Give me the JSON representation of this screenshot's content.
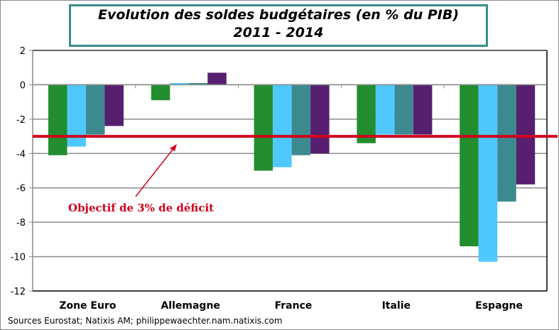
{
  "chart_data": {
    "type": "bar",
    "title": "Evolution des soldes budgétaires (en % du PIB)",
    "subtitle": "2011 - 2014",
    "categories": [
      "Zone Euro",
      "Allemagne",
      "France",
      "Italie",
      "Espagne"
    ],
    "series": [
      {
        "values": [
          -4.1,
          -0.9,
          -5.0,
          -3.4,
          -9.4
        ],
        "color": "#238e2f"
      },
      {
        "values": [
          -3.6,
          0.1,
          -4.8,
          -2.9,
          -10.3
        ],
        "color": "#4fc8ff"
      },
      {
        "values": [
          -2.9,
          0.1,
          -4.1,
          -2.9,
          -6.8
        ],
        "color": "#3c8a8f"
      },
      {
        "values": [
          -2.4,
          0.7,
          -4.0,
          -2.9,
          -5.8
        ],
        "color": "#571f70"
      }
    ],
    "ylim": [
      -12,
      2
    ],
    "yticks": [
      2,
      0,
      -2,
      -4,
      -6,
      -8,
      -10,
      -12
    ],
    "grid": true,
    "reference_line": {
      "value": -3,
      "color": "#d0021b",
      "label": "Objectif de 3% de déficit"
    },
    "source": "Sources Eurostat; Natixis AM; philippewaechter.nam.natixis.com"
  }
}
